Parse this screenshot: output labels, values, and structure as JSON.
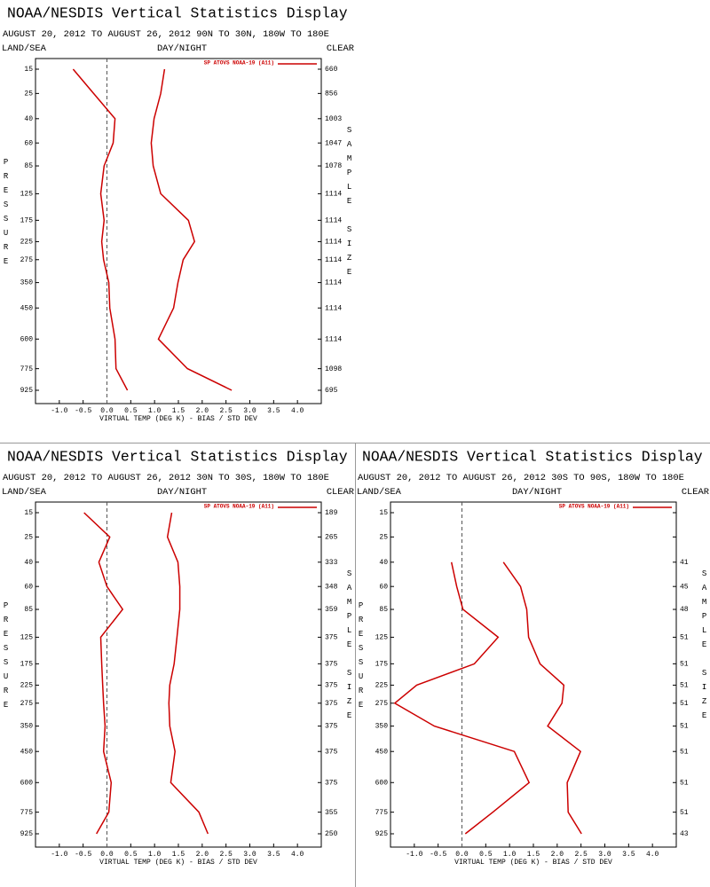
{
  "chart_data": [
    {
      "type": "line",
      "title": "NOAA/NESDIS Vertical Statistics Display",
      "subtitle": "AUGUST 20, 2012 TO AUGUST 26, 2012 90N TO 30N, 180W TO 180E",
      "left_label": "LAND/SEA",
      "center_label": "DAY/NIGHT",
      "right_label": "CLEAR",
      "y_axis_label": "PRESSURE",
      "y2_axis_label": "SAMPLE SIZE",
      "x_axis_label": "VIRTUAL TEMP (DEG K) - BIAS / STD DEV",
      "categories": [
        15,
        25,
        40,
        60,
        85,
        125,
        175,
        225,
        275,
        350,
        450,
        600,
        775,
        925
      ],
      "sample_size": [
        660,
        856,
        1003,
        1047,
        1078,
        1114,
        1114,
        1114,
        1114,
        1114,
        1114,
        1114,
        1098,
        695
      ],
      "series": [
        {
          "name": "SP ATOVS NOAA-19 (A11)",
          "color": "#cc0000",
          "bias": [
            -0.71,
            -0.28,
            0.17,
            0.13,
            -0.06,
            -0.13,
            -0.06,
            -0.11,
            -0.07,
            0.04,
            0.06,
            0.17,
            0.19,
            0.43
          ],
          "std_dev": [
            1.21,
            1.13,
            0.99,
            0.93,
            0.97,
            1.13,
            1.71,
            1.84,
            1.6,
            1.49,
            1.4,
            1.08,
            1.69,
            2.62
          ]
        }
      ],
      "xlim": [
        -1.5,
        4.5
      ],
      "xticks": [
        {
          "value": -1,
          "label": "-1.0"
        },
        {
          "value": -0.5,
          "label": "-0.5"
        },
        {
          "value": 0,
          "label": "0.0"
        },
        {
          "value": 0.5,
          "label": "0.5"
        },
        {
          "value": 1,
          "label": "1.0"
        },
        {
          "value": 1.5,
          "label": "1.5"
        },
        {
          "value": 2,
          "label": "2.0"
        },
        {
          "value": 2.5,
          "label": "2.5"
        },
        {
          "value": 3,
          "label": "3.0"
        },
        {
          "value": 3.5,
          "label": "3.5"
        },
        {
          "value": 4,
          "label": "4.0"
        }
      ]
    },
    {
      "type": "line",
      "title": "NOAA/NESDIS Vertical Statistics Display",
      "subtitle": "AUGUST 20, 2012 TO AUGUST 26, 2012 30N TO 30S, 180W TO 180E",
      "left_label": "LAND/SEA",
      "center_label": "DAY/NIGHT",
      "right_label": "CLEAR",
      "y_axis_label": "PRESSURE",
      "y2_axis_label": "SAMPLE SIZE",
      "x_axis_label": "VIRTUAL TEMP (DEG K) - BIAS / STD DEV",
      "categories": [
        15,
        25,
        40,
        60,
        85,
        125,
        175,
        225,
        275,
        350,
        450,
        600,
        775,
        925
      ],
      "sample_size": [
        189,
        265,
        333,
        348,
        359,
        375,
        375,
        375,
        375,
        375,
        375,
        375,
        355,
        250
      ],
      "series": [
        {
          "name": "SP ATOVS NOAA-19 (A11)",
          "color": "#cc0000",
          "bias": [
            -0.48,
            0.06,
            -0.17,
            0,
            0.33,
            -0.13,
            -0.11,
            -0.09,
            -0.07,
            -0.04,
            -0.07,
            0.09,
            0.04,
            -0.22
          ],
          "std_dev": [
            1.36,
            1.27,
            1.49,
            1.53,
            1.53,
            1.47,
            1.41,
            1.32,
            1.3,
            1.32,
            1.43,
            1.34,
            1.93,
            2.12
          ]
        }
      ],
      "xlim": [
        -1.5,
        4.5
      ],
      "xticks": [
        {
          "value": -1,
          "label": "-1.0"
        },
        {
          "value": -0.5,
          "label": "-0.5"
        },
        {
          "value": 0,
          "label": "0.0"
        },
        {
          "value": 0.5,
          "label": "0.5"
        },
        {
          "value": 1,
          "label": "1.0"
        },
        {
          "value": 1.5,
          "label": "1.5"
        },
        {
          "value": 2,
          "label": "2.0"
        },
        {
          "value": 2.5,
          "label": "2.5"
        },
        {
          "value": 3,
          "label": "3.0"
        },
        {
          "value": 3.5,
          "label": "3.5"
        },
        {
          "value": 4,
          "label": "4.0"
        }
      ]
    },
    {
      "type": "line",
      "title": "NOAA/NESDIS Vertical Statistics Display",
      "subtitle": "AUGUST 20, 2012 TO AUGUST 26, 2012 30S TO 90S, 180W TO 180E",
      "left_label": "LAND/SEA",
      "center_label": "DAY/NIGHT",
      "right_label": "CLEAR",
      "y_axis_label": "PRESSURE",
      "y2_axis_label": "SAMPLE SIZE",
      "x_axis_label": "VIRTUAL TEMP (DEG K) - BIAS / STD DEV",
      "categories": [
        15,
        25,
        40,
        60,
        85,
        125,
        175,
        225,
        275,
        350,
        450,
        600,
        775,
        925
      ],
      "sample_size": [
        null,
        null,
        41,
        45,
        48,
        51,
        51,
        51,
        51,
        51,
        51,
        51,
        51,
        43
      ],
      "series": [
        {
          "name": "SP ATOVS NOAA-19 (A11)",
          "color": "#cc0000",
          "bias": [
            null,
            null,
            -0.22,
            -0.11,
            0.02,
            0.76,
            0.26,
            -0.95,
            -1.41,
            -0.58,
            1.1,
            1.41,
            0.65,
            0.07
          ],
          "std_dev": [
            null,
            null,
            0.87,
            1.23,
            1.36,
            1.4,
            1.64,
            2.14,
            2.1,
            1.8,
            2.49,
            2.21,
            2.23,
            2.51
          ]
        }
      ],
      "xlim": [
        -1.5,
        4.5
      ],
      "xticks": [
        {
          "value": -1,
          "label": "-1.0"
        },
        {
          "value": -0.5,
          "label": "-0.5"
        },
        {
          "value": 0,
          "label": "0.0"
        },
        {
          "value": 0.5,
          "label": "0.5"
        },
        {
          "value": 1,
          "label": "1.0"
        },
        {
          "value": 1.5,
          "label": "1.5"
        },
        {
          "value": 2,
          "label": "2.0"
        },
        {
          "value": 2.5,
          "label": "2.5"
        },
        {
          "value": 3,
          "label": "3.0"
        },
        {
          "value": 3.5,
          "label": "3.5"
        },
        {
          "value": 4,
          "label": "4.0"
        }
      ]
    }
  ]
}
